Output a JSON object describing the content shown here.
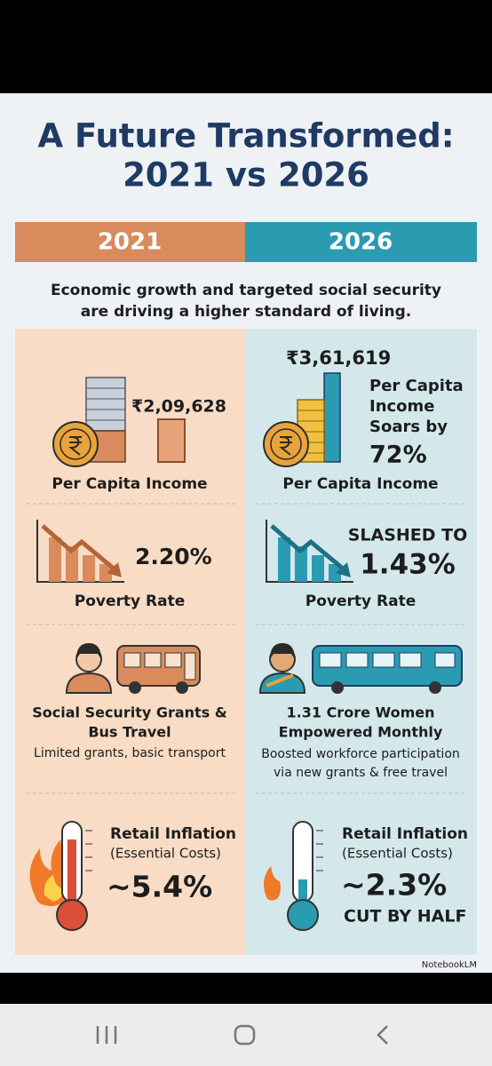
{
  "title": {
    "line1": "A Future Transformed:",
    "line2": "2021 vs 2026"
  },
  "tagline": {
    "line1": "Economic growth and targeted social security",
    "line2": "are driving a higher standard of living."
  },
  "columns": [
    {
      "year": "2021",
      "income": {
        "value": "₹2,09,628",
        "label": "Per Capita Income"
      },
      "poverty": {
        "value": "2.20%",
        "label": "Poverty Rate"
      },
      "social": {
        "title": [
          "Social Security Grants &",
          "Bus Travel"
        ],
        "description": [
          "Limited grants, basic transport"
        ]
      },
      "inflation": {
        "title": "Retail Inflation",
        "subtitle": "(Essential Costs)",
        "value": "~5.4%"
      }
    },
    {
      "year": "2026",
      "income": {
        "value": "₹3,61,619",
        "note": [
          "Per Capita",
          "Income",
          "Soars by",
          "72%"
        ],
        "label": "Per Capita Income"
      },
      "poverty": {
        "prefix": "SLASHED TO",
        "value": "1.43%",
        "label": "Poverty Rate"
      },
      "social": {
        "title": [
          "1.31 Crore Women",
          "Empowered Monthly"
        ],
        "description": [
          "Boosted workforce participation",
          "via new grants & free travel"
        ]
      },
      "inflation": {
        "title": "Retail Inflation",
        "subtitle": "(Essential Costs)",
        "value": "~2.3%",
        "note": "CUT BY HALF"
      }
    }
  ],
  "brand": "NotebookLM"
}
